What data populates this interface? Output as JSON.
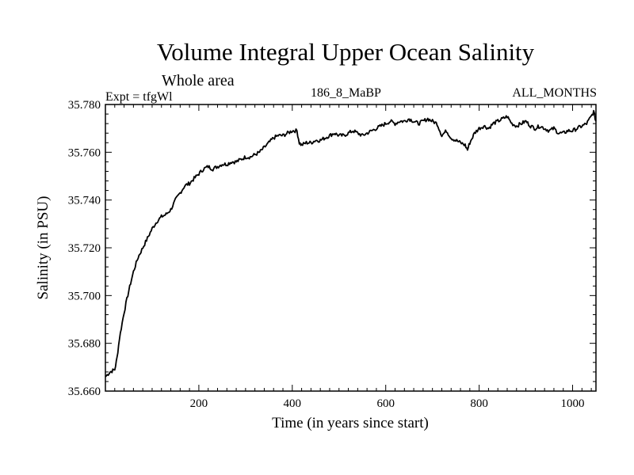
{
  "header": {
    "title": "Volume Integral Upper Ocean Salinity",
    "subtitle": "Whole area",
    "experiment": "Expt = tfgWl",
    "run_id": "186_8_MaBP",
    "period": "ALL_MONTHS"
  },
  "chart_data": {
    "type": "line",
    "title": "Volume Integral Upper Ocean Salinity",
    "xlabel": "Time (in years since start)",
    "ylabel": "Salinity (in PSU)",
    "xlim": [
      0,
      1050
    ],
    "ylim": [
      35.66,
      35.78
    ],
    "xticks": [
      200,
      400,
      600,
      800,
      1000
    ],
    "yticks": [
      35.66,
      35.68,
      35.7,
      35.72,
      35.74,
      35.76,
      35.78
    ],
    "ytick_labels": [
      "35.660",
      "35.680",
      "35.700",
      "35.720",
      "35.740",
      "35.760",
      "35.780"
    ],
    "grid": false,
    "series": [
      {
        "name": "Salinity",
        "x": [
          0,
          10,
          20,
          25,
          30,
          40,
          50,
          60,
          70,
          80,
          90,
          100,
          110,
          120,
          130,
          140,
          150,
          160,
          170,
          180,
          190,
          200,
          210,
          220,
          230,
          240,
          250,
          260,
          270,
          280,
          290,
          300,
          310,
          320,
          330,
          340,
          350,
          360,
          370,
          380,
          390,
          400,
          410,
          415,
          420,
          430,
          440,
          450,
          460,
          470,
          480,
          490,
          500,
          510,
          520,
          530,
          540,
          550,
          560,
          570,
          580,
          590,
          600,
          610,
          620,
          630,
          640,
          650,
          660,
          670,
          680,
          690,
          700,
          710,
          720,
          730,
          740,
          750,
          760,
          770,
          775,
          780,
          790,
          800,
          810,
          820,
          830,
          840,
          850,
          860,
          870,
          880,
          890,
          900,
          910,
          920,
          930,
          940,
          950,
          960,
          970,
          980,
          990,
          1000,
          1010,
          1020,
          1030,
          1040,
          1045,
          1050
        ],
        "values": [
          35.666,
          35.668,
          35.669,
          35.674,
          35.682,
          35.693,
          35.702,
          35.71,
          35.716,
          35.72,
          35.724,
          35.728,
          35.731,
          35.733,
          35.734,
          35.736,
          35.74,
          35.743,
          35.746,
          35.747,
          35.749,
          35.751,
          35.753,
          35.754,
          35.753,
          35.754,
          35.755,
          35.755,
          35.756,
          35.756,
          35.757,
          35.758,
          35.758,
          35.759,
          35.76,
          35.762,
          35.764,
          35.766,
          35.767,
          35.767,
          35.768,
          35.769,
          35.769,
          35.764,
          35.763,
          35.764,
          35.764,
          35.765,
          35.765,
          35.766,
          35.767,
          35.768,
          35.767,
          35.767,
          35.768,
          35.769,
          35.768,
          35.767,
          35.768,
          35.769,
          35.77,
          35.771,
          35.772,
          35.773,
          35.772,
          35.773,
          35.773,
          35.774,
          35.773,
          35.772,
          35.773,
          35.774,
          35.773,
          35.772,
          35.767,
          35.769,
          35.766,
          35.765,
          35.764,
          35.763,
          35.761,
          35.764,
          35.768,
          35.77,
          35.771,
          35.77,
          35.772,
          35.773,
          35.774,
          35.775,
          35.772,
          35.771,
          35.772,
          35.773,
          35.771,
          35.77,
          35.771,
          35.77,
          35.769,
          35.77,
          35.768,
          35.768,
          35.769,
          35.769,
          35.77,
          35.771,
          35.772,
          35.775,
          35.777,
          35.773
        ]
      }
    ]
  }
}
